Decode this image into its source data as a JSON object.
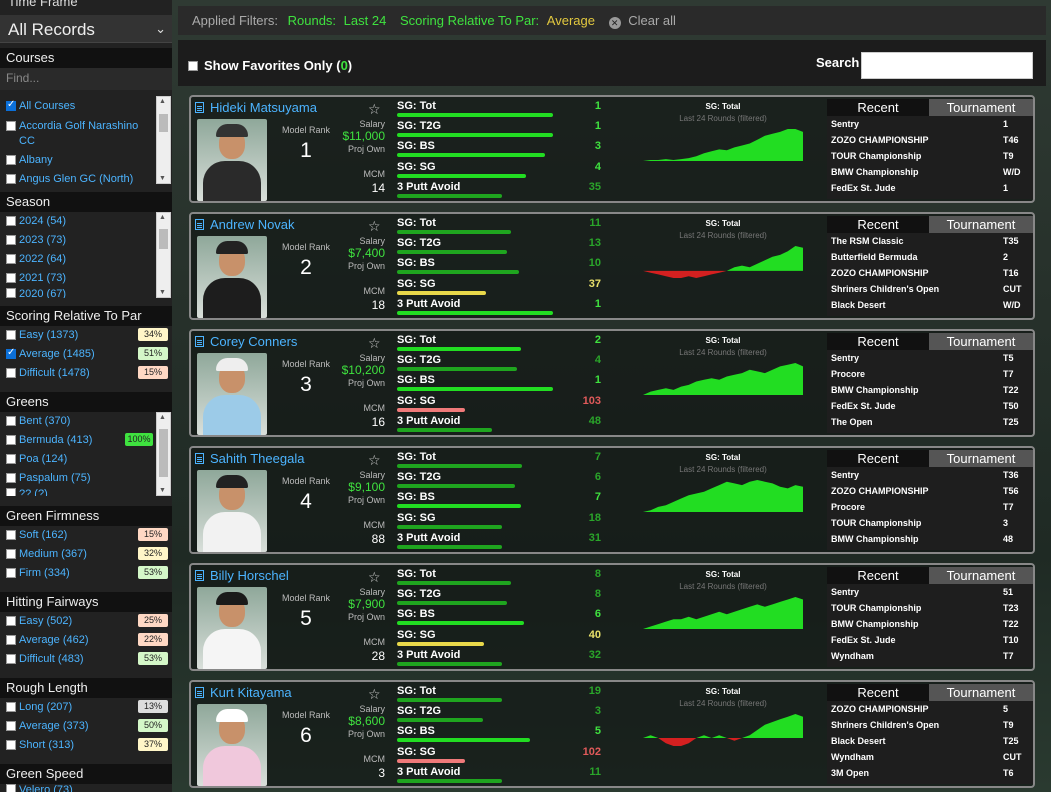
{
  "sidebar": {
    "time_frame_label": "Time Frame",
    "time_frame_value": "All Records",
    "courses": {
      "title": "Courses",
      "find_placeholder": "Find...",
      "items": [
        {
          "label": "All Courses",
          "checked": true
        },
        {
          "label": "Accordia Golf Narashino",
          "checked": false
        },
        {
          "label": "CC",
          "checked": false
        },
        {
          "label": "Albany",
          "checked": false
        },
        {
          "label": "Angus Glen GC (North)",
          "checked": false
        }
      ]
    },
    "season": {
      "title": "Season",
      "items": [
        {
          "label": "2024 (54)"
        },
        {
          "label": "2023 (73)"
        },
        {
          "label": "2022 (64)"
        },
        {
          "label": "2021 (73)"
        },
        {
          "label": "2020 (67)"
        }
      ]
    },
    "scoring": {
      "title": "Scoring Relative To Par",
      "items": [
        {
          "label": "Easy (1373)",
          "pct": "34%",
          "checked": false,
          "color": "#fff6c8"
        },
        {
          "label": "Average (1485)",
          "pct": "51%",
          "checked": true,
          "color": "#d4f7c8"
        },
        {
          "label": "Difficult (1478)",
          "pct": "15%",
          "checked": false,
          "color": "#ffd8c4"
        }
      ]
    },
    "greens": {
      "title": "Greens",
      "items": [
        {
          "label": "Bent (370)",
          "pct": ""
        },
        {
          "label": "Bermuda (413)",
          "pct": "100%"
        },
        {
          "label": "Poa (124)",
          "pct": ""
        },
        {
          "label": "Paspalum (75)",
          "pct": ""
        },
        {
          "label": "?? (?)",
          "pct": ""
        }
      ]
    },
    "green_firmness": {
      "title": "Green Firmness",
      "items": [
        {
          "label": "Soft (162)",
          "pct": "15%",
          "color": "#ffd8c4"
        },
        {
          "label": "Medium (367)",
          "pct": "32%",
          "color": "#fff6c8"
        },
        {
          "label": "Firm (334)",
          "pct": "53%",
          "color": "#d4f7c8"
        }
      ]
    },
    "fairways": {
      "title": "Hitting Fairways",
      "items": [
        {
          "label": "Easy (502)",
          "pct": "25%",
          "color": "#ffd8c4"
        },
        {
          "label": "Average (462)",
          "pct": "22%",
          "color": "#ffd8c4"
        },
        {
          "label": "Difficult (483)",
          "pct": "53%",
          "color": "#d4f7c8"
        }
      ]
    },
    "rough": {
      "title": "Rough Length",
      "items": [
        {
          "label": "Long (207)",
          "pct": "13%",
          "color": "#ddd"
        },
        {
          "label": "Average (373)",
          "pct": "50%",
          "color": "#d4f7c8"
        },
        {
          "label": "Short (313)",
          "pct": "37%",
          "color": "#fff6c8"
        }
      ]
    },
    "green_speed": {
      "title": "Green Speed",
      "items": [
        {
          "label": "Velero (73)"
        }
      ]
    }
  },
  "filters": {
    "label": "Applied Filters:",
    "rounds_key": "Rounds:",
    "rounds_val": "Last 24",
    "scoring_key": "Scoring Relative To Par:",
    "scoring_val": "Average",
    "clear": "Clear all"
  },
  "toolbar": {
    "fav_label": "Show Favorites Only",
    "fav_open": "(",
    "fav_count": "0",
    "fav_close": ")",
    "search_label": "Search"
  },
  "labels": {
    "model_rank": "Model Rank",
    "salary": "Salary",
    "proj_own": "Proj Own",
    "mcm": "MCM",
    "sg_tot": "SG: Tot",
    "sg_t2g": "SG: T2G",
    "sg_bs": "SG: BS",
    "sg_sg": "SG: SG",
    "putt": "3 Putt Avoid",
    "spark_title": "SG: Total",
    "spark_sub": "Last 24 Rounds (filtered)",
    "tab_recent": "Recent",
    "tab_tournament": "Tournament"
  },
  "players": [
    {
      "name": "Hideki Matsuyama",
      "rank": "1",
      "salary": "$11,000",
      "mcm": "14",
      "shirt": "#2a2a2a",
      "cap": "#333",
      "stats": [
        {
          "v": "1",
          "c": "#3fe23f",
          "w": 0.82,
          "bc": "#22dd22"
        },
        {
          "v": "1",
          "c": "#3fe23f",
          "w": 0.82,
          "bc": "#22dd22"
        },
        {
          "v": "3",
          "c": "#3fe23f",
          "w": 0.78,
          "bc": "#22dd22"
        },
        {
          "v": "4",
          "c": "#3fe23f",
          "w": 0.68,
          "bc": "#22dd22"
        },
        {
          "v": "35",
          "c": "#2aa52a",
          "w": 0.55,
          "bc": "#1fa51f"
        }
      ],
      "spark": [
        0,
        1,
        1,
        2,
        1,
        2,
        3,
        5,
        8,
        10,
        12,
        11,
        14,
        16,
        18,
        22,
        26,
        28,
        30,
        33,
        33,
        30
      ],
      "recent": [
        {
          "e": "Sentry",
          "f": "1"
        },
        {
          "e": "ZOZO CHAMPIONSHIP",
          "f": "T46"
        },
        {
          "e": "TOUR Championship",
          "f": "T9"
        },
        {
          "e": "BMW Championship",
          "f": "W/D"
        },
        {
          "e": "FedEx St. Jude",
          "f": "1"
        }
      ]
    },
    {
      "name": "Andrew Novak",
      "rank": "2",
      "salary": "$7,400",
      "mcm": "18",
      "shirt": "#1d1d1d",
      "cap": "#222",
      "stats": [
        {
          "v": "11",
          "c": "#2aa52a",
          "w": 0.6,
          "bc": "#1fa51f"
        },
        {
          "v": "13",
          "c": "#2aa52a",
          "w": 0.58,
          "bc": "#1fa51f"
        },
        {
          "v": "10",
          "c": "#2aa52a",
          "w": 0.64,
          "bc": "#1fa51f"
        },
        {
          "v": "37",
          "c": "#e8e06a",
          "w": 0.47,
          "bc": "#e8d84a"
        },
        {
          "v": "1",
          "c": "#3fe23f",
          "w": 0.82,
          "bc": "#22dd22"
        }
      ],
      "spark": [
        0,
        -1,
        -2,
        -3,
        -4,
        -4,
        -3,
        -4,
        -3,
        -2,
        -1,
        0,
        2,
        3,
        2,
        4,
        6,
        8,
        9,
        11,
        14,
        13
      ],
      "recent": [
        {
          "e": "The RSM Classic",
          "f": "T35"
        },
        {
          "e": "Butterfield Bermuda",
          "f": "2"
        },
        {
          "e": "ZOZO CHAMPIONSHIP",
          "f": "T16"
        },
        {
          "e": "Shriners Children's Open",
          "f": "CUT"
        },
        {
          "e": "Black Desert",
          "f": "W/D"
        }
      ]
    },
    {
      "name": "Corey Conners",
      "rank": "3",
      "salary": "$10,200",
      "mcm": "16",
      "shirt": "#9ccbe8",
      "cap": "#eee",
      "stats": [
        {
          "v": "2",
          "c": "#3fe23f",
          "w": 0.65,
          "bc": "#22dd22"
        },
        {
          "v": "4",
          "c": "#2aa52a",
          "w": 0.63,
          "bc": "#1fa51f"
        },
        {
          "v": "1",
          "c": "#3fe23f",
          "w": 0.82,
          "bc": "#22dd22"
        },
        {
          "v": "103",
          "c": "#e05a5a",
          "w": 0.36,
          "bc": "#f07a7a"
        },
        {
          "v": "48",
          "c": "#2aa52a",
          "w": 0.5,
          "bc": "#1fa51f"
        }
      ],
      "spark": [
        0,
        2,
        3,
        4,
        3,
        5,
        6,
        8,
        9,
        10,
        9,
        11,
        12,
        13,
        15,
        14,
        13,
        15,
        17,
        18,
        19,
        17
      ],
      "recent": [
        {
          "e": "Sentry",
          "f": "T5"
        },
        {
          "e": "Procore",
          "f": "T7"
        },
        {
          "e": "BMW Championship",
          "f": "T22"
        },
        {
          "e": "FedEx St. Jude",
          "f": "T50"
        },
        {
          "e": "The Open",
          "f": "T25"
        }
      ]
    },
    {
      "name": "Sahith Theegala",
      "rank": "4",
      "salary": "$9,100",
      "mcm": "88",
      "shirt": "#f2f2f2",
      "cap": "#222",
      "stats": [
        {
          "v": "7",
          "c": "#2aa52a",
          "w": 0.66,
          "bc": "#1fa51f"
        },
        {
          "v": "6",
          "c": "#2aa52a",
          "w": 0.62,
          "bc": "#1fa51f"
        },
        {
          "v": "7",
          "c": "#3fe23f",
          "w": 0.65,
          "bc": "#22dd22"
        },
        {
          "v": "18",
          "c": "#2aa52a",
          "w": 0.55,
          "bc": "#1fa51f"
        },
        {
          "v": "31",
          "c": "#2aa52a",
          "w": 0.55,
          "bc": "#1fa51f"
        }
      ],
      "spark": [
        0,
        1,
        3,
        4,
        6,
        8,
        10,
        11,
        12,
        14,
        16,
        18,
        17,
        16,
        18,
        19,
        18,
        17,
        15,
        14,
        16,
        15
      ],
      "recent": [
        {
          "e": "Sentry",
          "f": "T36"
        },
        {
          "e": "ZOZO CHAMPIONSHIP",
          "f": "T56"
        },
        {
          "e": "Procore",
          "f": "T7"
        },
        {
          "e": "TOUR Championship",
          "f": "3"
        },
        {
          "e": "BMW Championship",
          "f": "48"
        }
      ]
    },
    {
      "name": "Billy Horschel",
      "rank": "5",
      "salary": "$7,900",
      "mcm": "28",
      "shirt": "#f5f5f5",
      "cap": "#1a1a1a",
      "stats": [
        {
          "v": "8",
          "c": "#2aa52a",
          "w": 0.6,
          "bc": "#1fa51f"
        },
        {
          "v": "8",
          "c": "#2aa52a",
          "w": 0.58,
          "bc": "#1fa51f"
        },
        {
          "v": "6",
          "c": "#3fe23f",
          "w": 0.67,
          "bc": "#22dd22"
        },
        {
          "v": "40",
          "c": "#e8e06a",
          "w": 0.46,
          "bc": "#e8d84a"
        },
        {
          "v": "32",
          "c": "#2aa52a",
          "w": 0.55,
          "bc": "#1fa51f"
        }
      ],
      "spark": [
        0,
        1,
        2,
        3,
        4,
        4,
        5,
        4,
        5,
        6,
        7,
        6,
        7,
        8,
        9,
        10,
        9,
        10,
        11,
        12,
        13,
        12
      ],
      "recent": [
        {
          "e": "Sentry",
          "f": "51"
        },
        {
          "e": "TOUR Championship",
          "f": "T23"
        },
        {
          "e": "BMW Championship",
          "f": "T22"
        },
        {
          "e": "FedEx St. Jude",
          "f": "T10"
        },
        {
          "e": "Wyndham",
          "f": "T7"
        }
      ]
    },
    {
      "name": "Kurt Kitayama",
      "rank": "6",
      "salary": "$8,600",
      "mcm": "3",
      "shirt": "#f0c8dc",
      "cap": "#fff",
      "stats": [
        {
          "v": "19",
          "c": "#2aa52a",
          "w": 0.55,
          "bc": "#1fa51f"
        },
        {
          "v": "3",
          "c": "#2aa52a",
          "w": 0.45,
          "bc": "#1fa51f"
        },
        {
          "v": "5",
          "c": "#3fe23f",
          "w": 0.7,
          "bc": "#22dd22"
        },
        {
          "v": "102",
          "c": "#e05a5a",
          "w": 0.36,
          "bc": "#f07a7a"
        },
        {
          "v": "11",
          "c": "#2aa52a",
          "w": 0.55,
          "bc": "#1fa51f"
        }
      ],
      "spark": [
        0,
        1,
        0,
        -2,
        -3,
        -3,
        -2,
        0,
        1,
        0,
        1,
        0,
        -1,
        0,
        1,
        3,
        5,
        6,
        7,
        8,
        9,
        8
      ],
      "recent": [
        {
          "e": "ZOZO CHAMPIONSHIP",
          "f": "5"
        },
        {
          "e": "Shriners Children's Open",
          "f": "T9"
        },
        {
          "e": "Black Desert",
          "f": "T25"
        },
        {
          "e": "Wyndham",
          "f": "CUT"
        },
        {
          "e": "3M Open",
          "f": "T6"
        }
      ]
    }
  ]
}
